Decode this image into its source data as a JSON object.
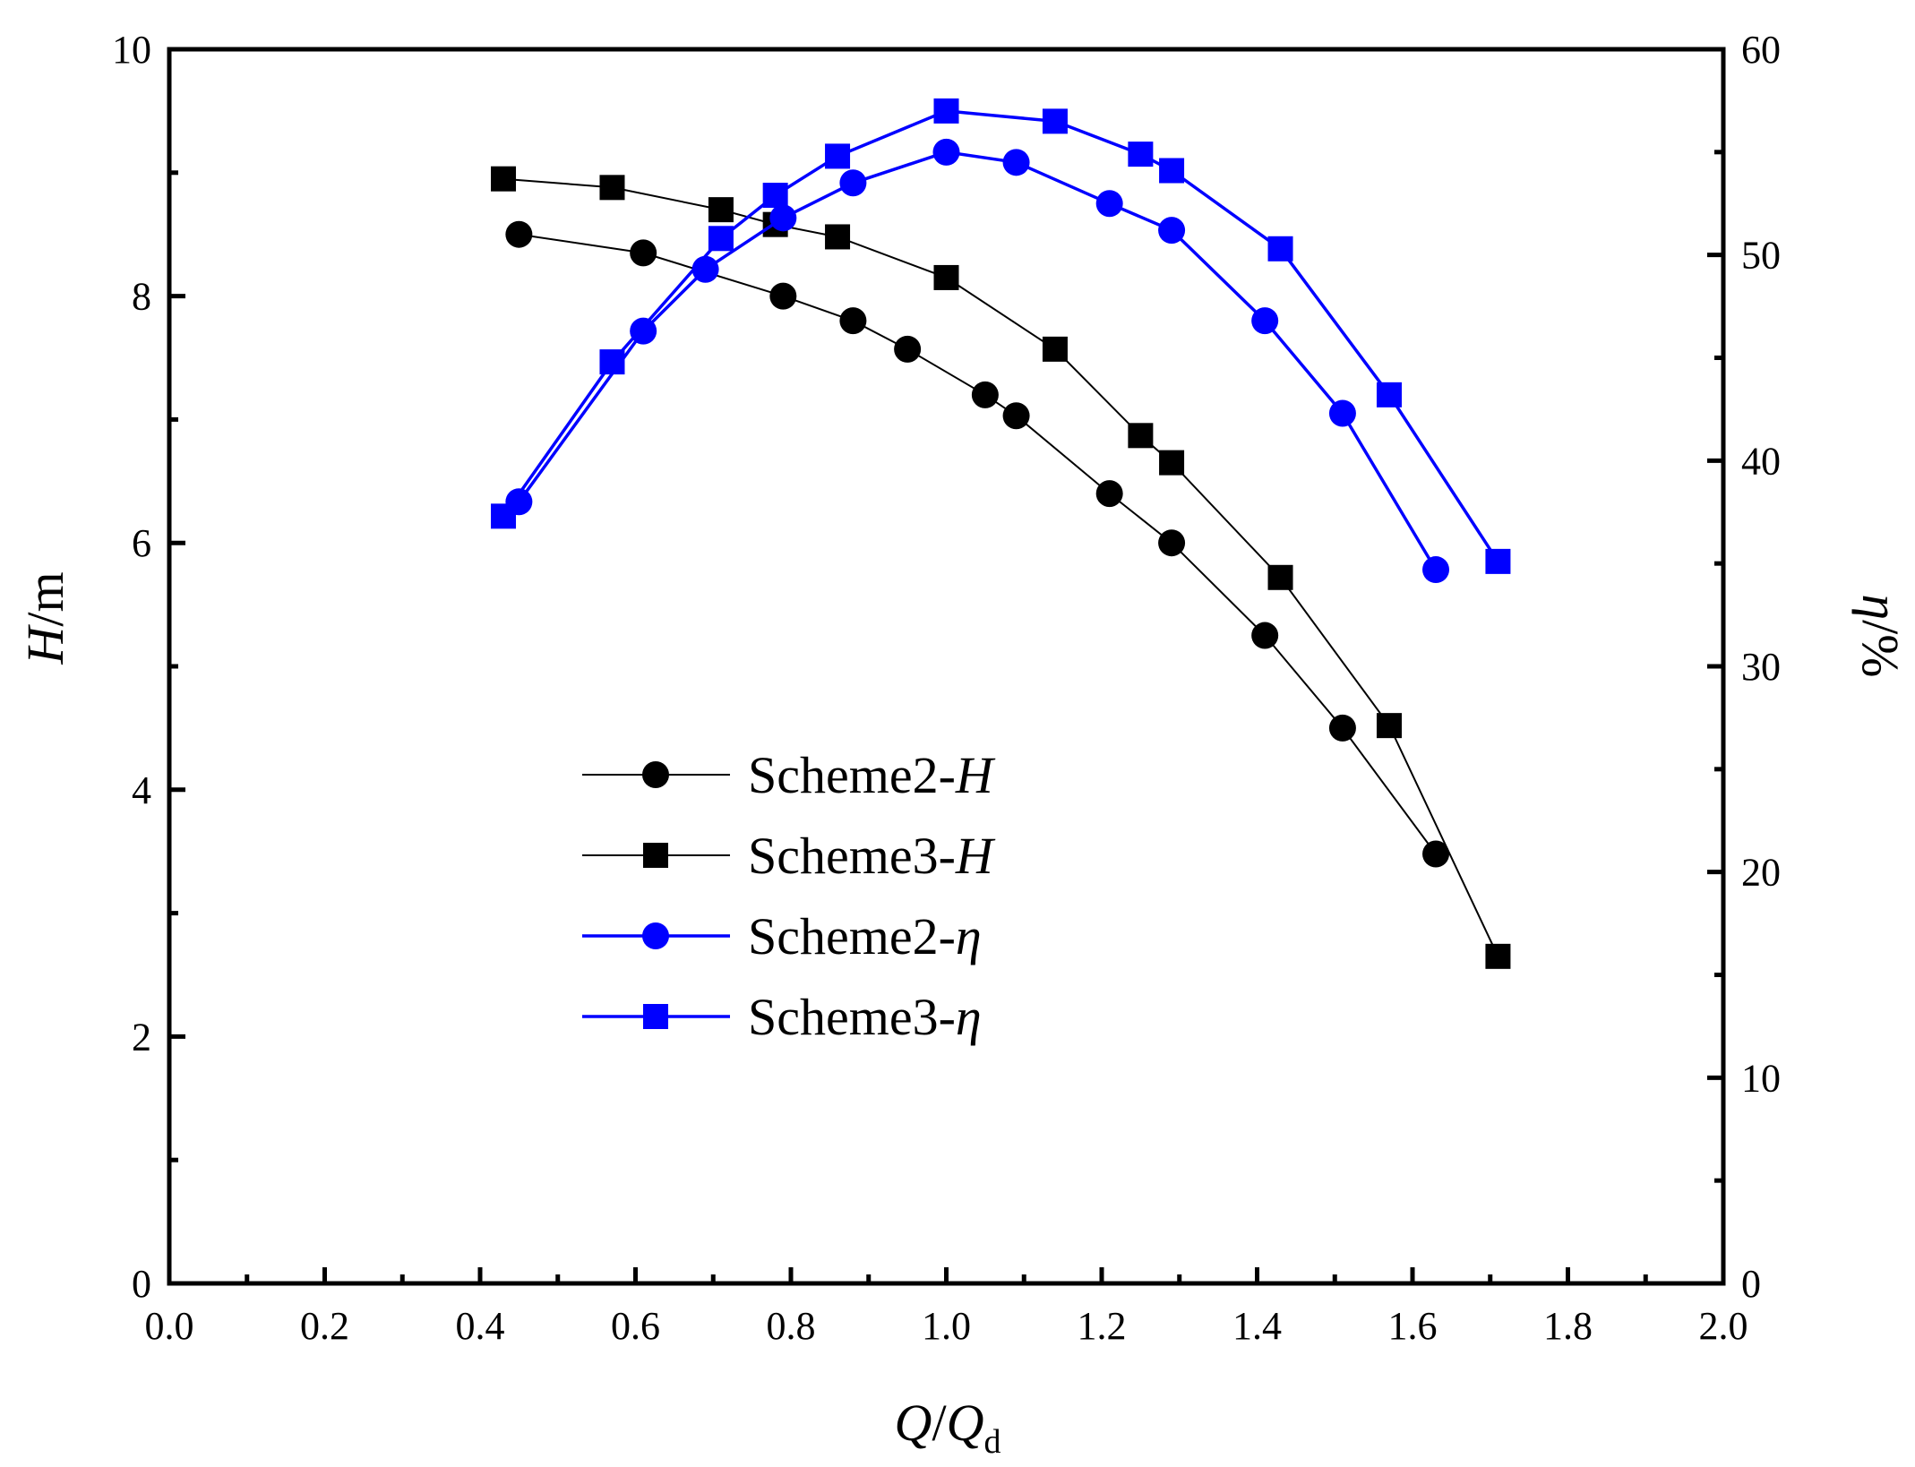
{
  "chart_data": {
    "type": "line",
    "x_axis": {
      "label_parts": [
        {
          "text": "Q",
          "italic": true
        },
        {
          "text": "/",
          "italic": false
        },
        {
          "text": "Q",
          "italic": true
        }
      ],
      "label_subscript": "d",
      "range": [
        0.0,
        2.0
      ],
      "tick_labels": [
        "0.0",
        "0.2",
        "0.4",
        "0.6",
        "0.8",
        "1.0",
        "1.2",
        "1.4",
        "1.6",
        "1.8",
        "2.0"
      ]
    },
    "y_left": {
      "label_italic": "H",
      "label_rest": "/m",
      "range": [
        0,
        10
      ],
      "tick_labels": [
        "0",
        "2",
        "4",
        "6",
        "8",
        "10"
      ]
    },
    "y_right": {
      "label_italic": "η",
      "label_rest": "/%",
      "range": [
        0,
        60
      ],
      "tick_labels": [
        "0",
        "10",
        "20",
        "30",
        "40",
        "50",
        "60"
      ]
    },
    "grid": false,
    "legend_position": "center-left",
    "series": [
      {
        "name": "Scheme2-H",
        "legend_base": "Scheme2-",
        "legend_symbol": "H",
        "axis": "left",
        "marker": "circle",
        "color": "#000000",
        "x": [
          0.45,
          0.61,
          0.79,
          0.88,
          0.95,
          1.05,
          1.09,
          1.21,
          1.29,
          1.41,
          1.51,
          1.63
        ],
        "y": [
          8.5,
          8.35,
          8.0,
          7.8,
          7.57,
          7.2,
          7.03,
          6.4,
          6.0,
          5.25,
          4.5,
          3.48
        ]
      },
      {
        "name": "Scheme3-H",
        "legend_base": "Scheme3-",
        "legend_symbol": "H",
        "axis": "left",
        "marker": "square",
        "color": "#000000",
        "x": [
          0.43,
          0.57,
          0.71,
          0.78,
          0.86,
          1.0,
          1.14,
          1.25,
          1.29,
          1.43,
          1.57,
          1.71
        ],
        "y": [
          8.95,
          8.88,
          8.7,
          8.58,
          8.48,
          8.15,
          7.57,
          6.87,
          6.65,
          5.72,
          4.52,
          2.65
        ]
      },
      {
        "name": "Scheme2-η",
        "legend_base": "Scheme2-",
        "legend_symbol": "η",
        "axis": "right",
        "marker": "circle",
        "color": "#0000ff",
        "x": [
          0.45,
          0.61,
          0.69,
          0.79,
          0.88,
          1.0,
          1.09,
          1.21,
          1.29,
          1.41,
          1.51,
          1.63
        ],
        "y": [
          38.0,
          46.3,
          49.3,
          51.8,
          53.5,
          55.0,
          54.5,
          52.5,
          51.2,
          46.8,
          42.3,
          34.7
        ]
      },
      {
        "name": "Scheme3-η",
        "legend_base": "Scheme3-",
        "legend_symbol": "η",
        "axis": "right",
        "marker": "square",
        "color": "#0000ff",
        "x": [
          0.43,
          0.57,
          0.71,
          0.78,
          0.86,
          1.0,
          1.14,
          1.25,
          1.29,
          1.43,
          1.57,
          1.71
        ],
        "y": [
          37.3,
          44.8,
          50.8,
          52.9,
          54.8,
          57.0,
          56.5,
          54.9,
          54.1,
          50.3,
          43.2,
          35.1
        ]
      }
    ]
  }
}
